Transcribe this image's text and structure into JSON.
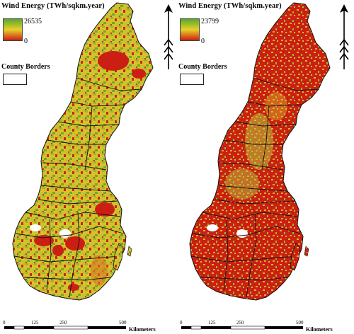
{
  "panels": [
    {
      "legend_title": "Wind Energy (TWh/sqkm.year)",
      "ramp_max": "26535",
      "ramp_min": "0",
      "borders_label": "County Borders",
      "scale": {
        "ticks": [
          "0",
          "125",
          "250",
          "500"
        ],
        "unit": "Kilometers"
      },
      "map_palette": "yellow-green dominant with red patches",
      "colors": {
        "low": "#cc1f14",
        "mid": "#e8d02a",
        "high": "#5aa82d"
      }
    },
    {
      "legend_title": "Wind Energy (TWh/sqkm.year)",
      "ramp_max": "23799",
      "ramp_min": "0",
      "borders_label": "County Borders",
      "scale": {
        "ticks": [
          "0",
          "125",
          "250",
          "500"
        ],
        "unit": "Kilometers"
      },
      "map_palette": "red dominant with scattered yellow-green",
      "colors": {
        "low": "#cc1f14",
        "mid": "#e8d02a",
        "high": "#5aa82d"
      }
    }
  ]
}
